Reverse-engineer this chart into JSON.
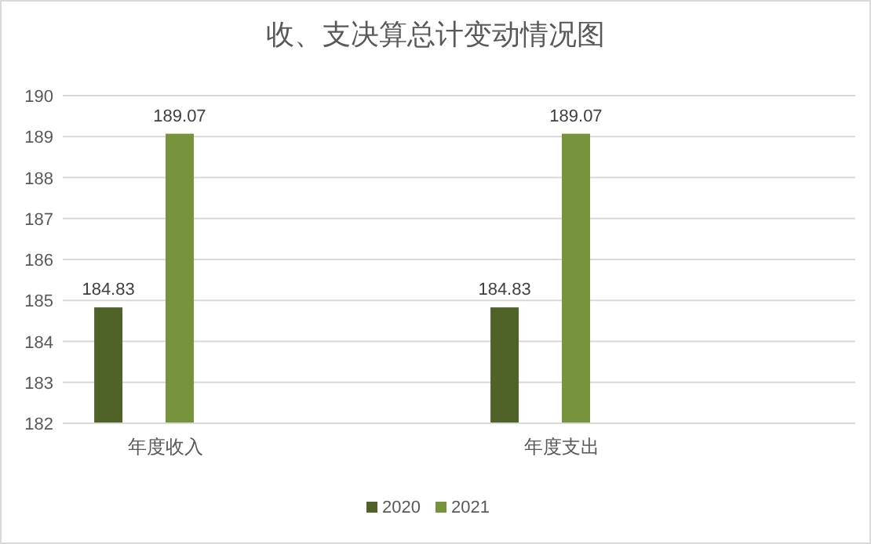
{
  "chart_data": {
    "type": "bar",
    "title": "收、支决算总计变动情况图",
    "categories": [
      "年度收入",
      "年度支出"
    ],
    "series": [
      {
        "name": "2020",
        "color": "#4f6228",
        "values": [
          184.83,
          184.83
        ]
      },
      {
        "name": "2021",
        "color": "#77933c",
        "values": [
          189.07,
          189.07
        ]
      }
    ],
    "ylim": [
      182,
      190
    ],
    "yticks": [
      182,
      183,
      184,
      185,
      186,
      187,
      188,
      189,
      190
    ],
    "grid": "y",
    "legend": "bottom",
    "data_labels": true
  }
}
